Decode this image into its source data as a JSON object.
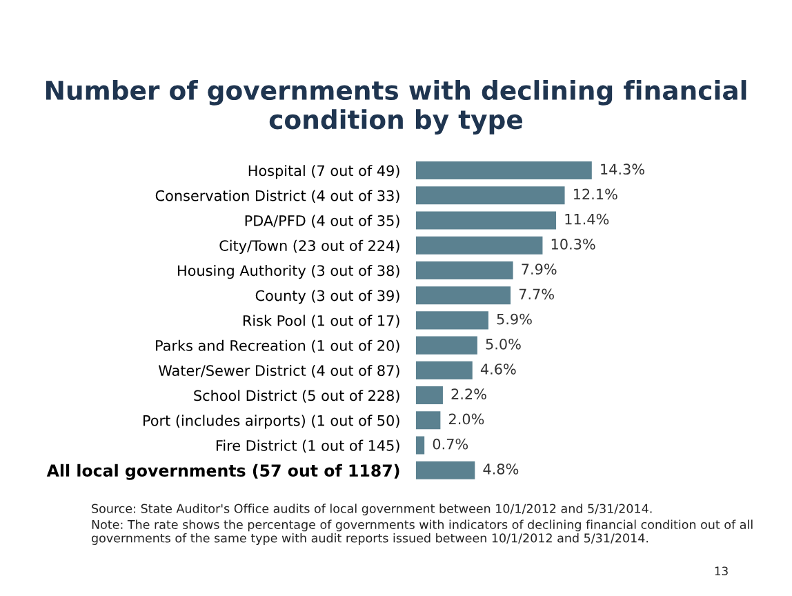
{
  "chart_data": {
    "type": "bar",
    "orientation": "horizontal",
    "title": "Number of governments with declining financial condition by type",
    "categories": [
      "Hospital (7 out of 49)",
      "Conservation District (4 out of 33)",
      "PDA/PFD (4 out of 35)",
      "City/Town (23 out of 224)",
      "Housing Authority (3 out of 38)",
      "County (3 out of 39)",
      "Risk Pool (1 out of 17)",
      "Parks and Recreation (1 out of 20)",
      "Water/Sewer District (4 out of 87)",
      "School District (5 out of 228)",
      "Port (includes airports) (1 out of 50)",
      "Fire District (1 out of 145)",
      "All local governments (57 out of 1187)"
    ],
    "values": [
      14.3,
      12.1,
      11.4,
      10.3,
      7.9,
      7.7,
      5.9,
      5.0,
      4.6,
      2.2,
      2.0,
      0.7,
      4.8
    ],
    "value_labels": [
      "14.3%",
      "12.1%",
      "11.4%",
      "10.3%",
      "7.9%",
      "7.7%",
      "5.9%",
      "5.0%",
      "4.6%",
      "2.2%",
      "2.0%",
      "0.7%",
      "4.8%"
    ],
    "color": "#5b8190",
    "grid": false,
    "annotations": [
      "Source: State Auditor's Office audits of local government between 10/1/2012 and 5/31/2014.",
      "Note: The rate shows the percentage of governments with indicators of declining financial condition out of all governments of the same type with audit reports issued between 10/1/2012 and 5/31/2014.",
      "13"
    ]
  }
}
